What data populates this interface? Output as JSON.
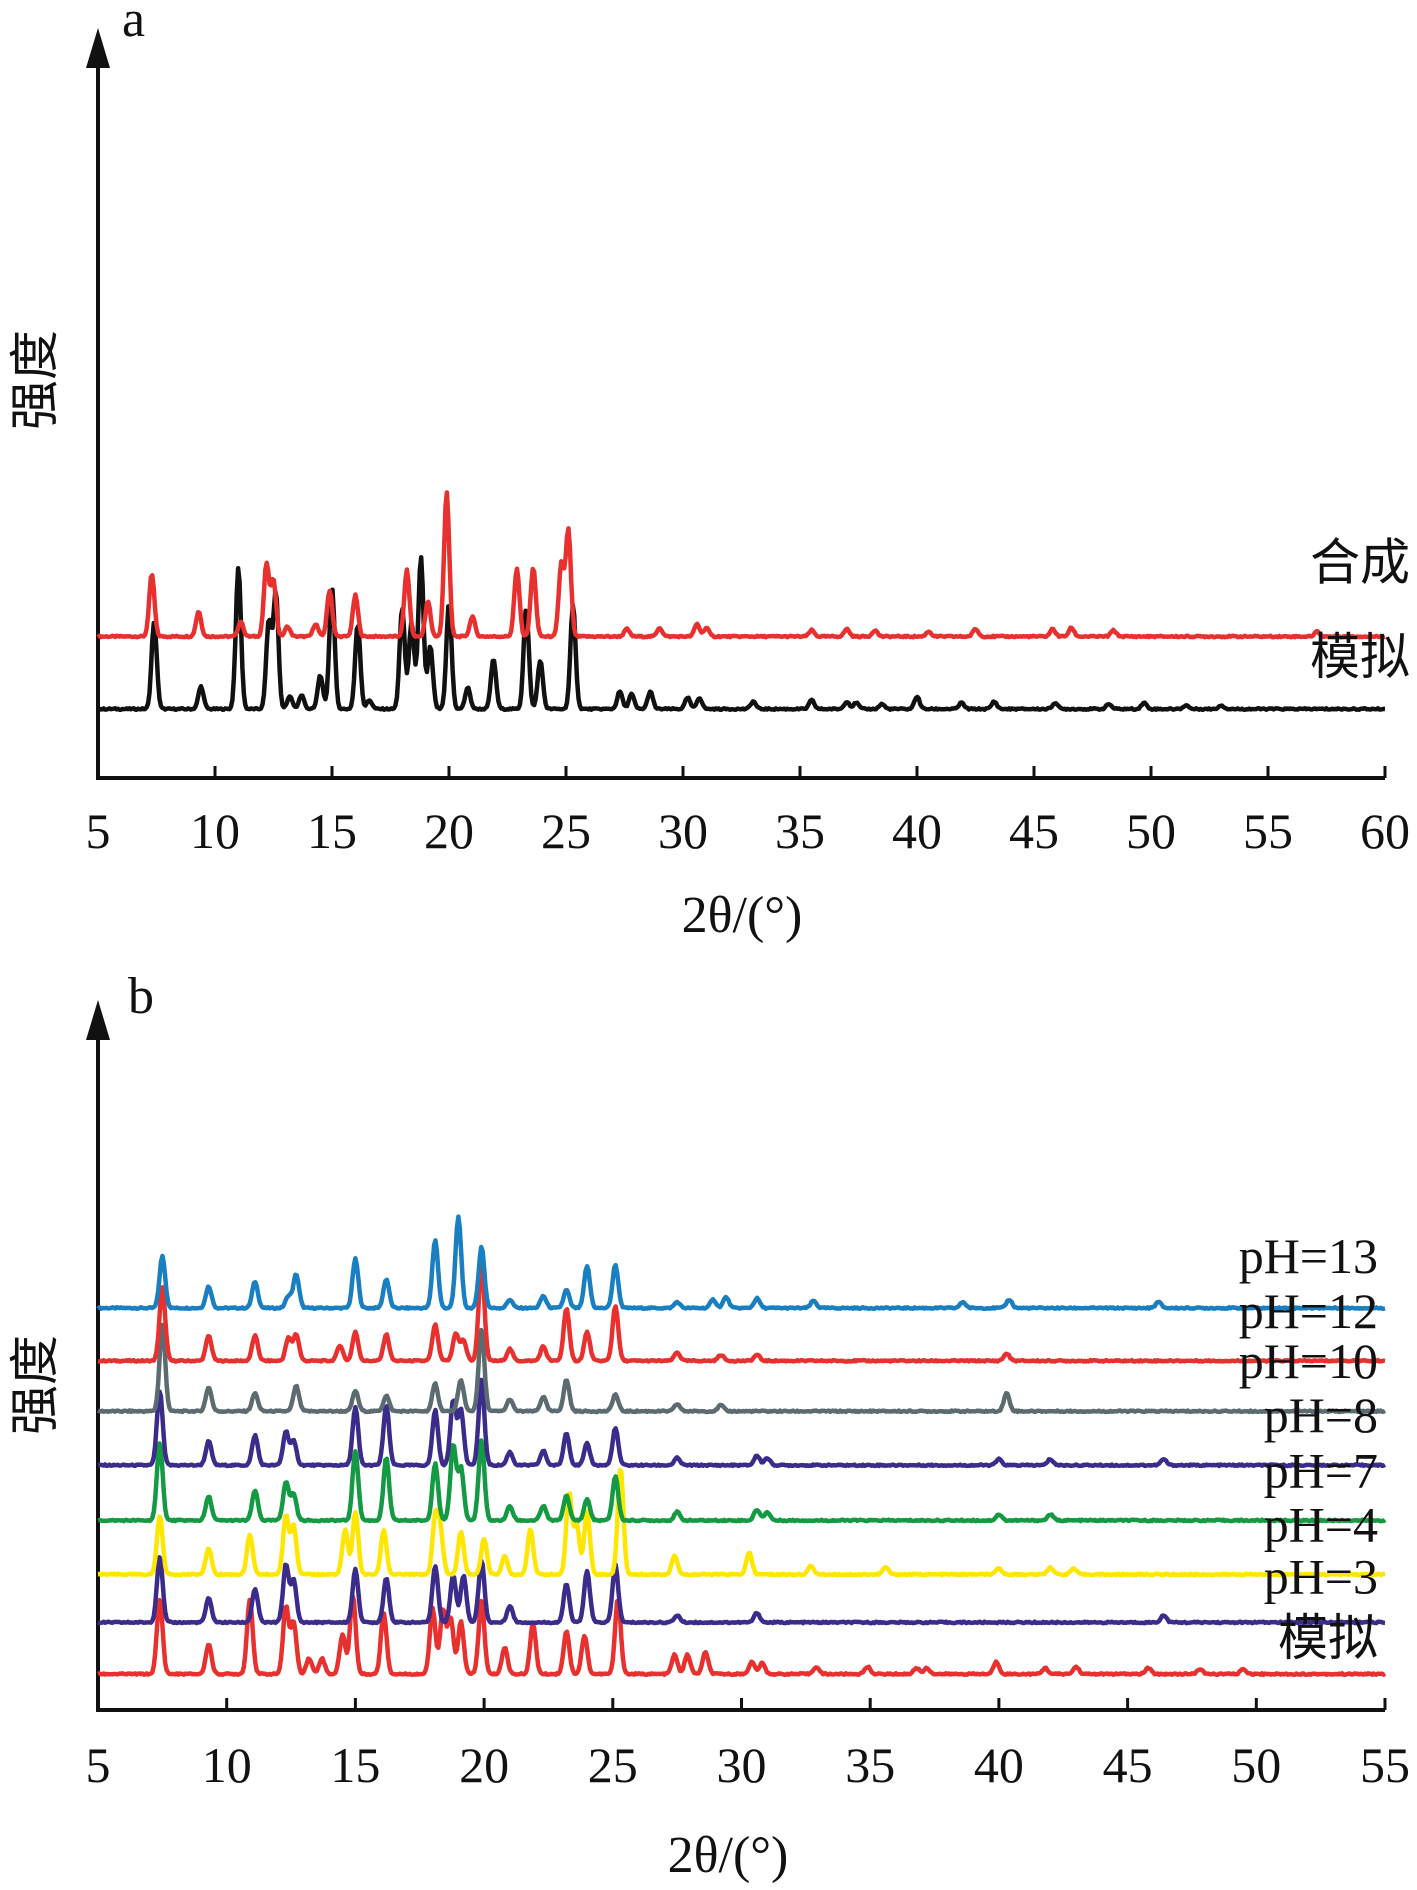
{
  "chart_data": [
    {
      "type": "line",
      "panel_label": "a",
      "ylabel": "强度",
      "xlabel": "2θ/(°)",
      "xlim": [
        5,
        60
      ],
      "xticks": [
        5,
        10,
        15,
        20,
        25,
        30,
        35,
        40,
        45,
        50,
        55,
        60
      ],
      "y_ticks_shown": false,
      "legend_placement": "right-of-each-curve",
      "series": [
        {
          "name": "合成",
          "color": "#e8312f",
          "baseline": 0.58,
          "peaks": [
            [
              7.3,
              0.5
            ],
            [
              9.3,
              0.2
            ],
            [
              11.1,
              0.12
            ],
            [
              12.2,
              0.58
            ],
            [
              12.5,
              0.45
            ],
            [
              13.1,
              0.08
            ],
            [
              14.3,
              0.1
            ],
            [
              14.9,
              0.37
            ],
            [
              16.0,
              0.33
            ],
            [
              18.2,
              0.53
            ],
            [
              19.1,
              0.28
            ],
            [
              19.9,
              1.16
            ],
            [
              21.0,
              0.16
            ],
            [
              22.9,
              0.54
            ],
            [
              23.6,
              0.55
            ],
            [
              24.8,
              0.58
            ],
            [
              25.1,
              0.85
            ],
            [
              27.6,
              0.06
            ],
            [
              29.0,
              0.07
            ],
            [
              30.6,
              0.1
            ],
            [
              31.0,
              0.07
            ],
            [
              35.5,
              0.05
            ],
            [
              37.0,
              0.06
            ],
            [
              38.2,
              0.05
            ],
            [
              40.5,
              0.04
            ],
            [
              42.5,
              0.06
            ],
            [
              45.8,
              0.06
            ],
            [
              46.6,
              0.07
            ],
            [
              48.4,
              0.05
            ],
            [
              57.1,
              0.04
            ]
          ]
        },
        {
          "name": "模拟",
          "color": "#111111",
          "baseline": 0.0,
          "peaks": [
            [
              7.4,
              0.7
            ],
            [
              9.4,
              0.18
            ],
            [
              11.0,
              1.13
            ],
            [
              12.3,
              0.7
            ],
            [
              12.6,
              0.93
            ],
            [
              13.2,
              0.1
            ],
            [
              13.7,
              0.11
            ],
            [
              14.5,
              0.27
            ],
            [
              15.0,
              0.98
            ],
            [
              16.1,
              0.68
            ],
            [
              16.6,
              0.07
            ],
            [
              18.0,
              0.81
            ],
            [
              18.4,
              0.7
            ],
            [
              18.8,
              1.22
            ],
            [
              19.2,
              0.5
            ],
            [
              20.0,
              0.85
            ],
            [
              20.8,
              0.17
            ],
            [
              21.9,
              0.4
            ],
            [
              23.3,
              0.81
            ],
            [
              23.9,
              0.39
            ],
            [
              25.3,
              0.83
            ],
            [
              27.3,
              0.14
            ],
            [
              27.8,
              0.12
            ],
            [
              28.6,
              0.14
            ],
            [
              30.2,
              0.09
            ],
            [
              30.7,
              0.09
            ],
            [
              33.0,
              0.06
            ],
            [
              35.5,
              0.07
            ],
            [
              37.0,
              0.06
            ],
            [
              37.4,
              0.05
            ],
            [
              38.5,
              0.04
            ],
            [
              40.0,
              0.1
            ],
            [
              41.9,
              0.05
            ],
            [
              43.3,
              0.06
            ],
            [
              45.9,
              0.05
            ],
            [
              48.2,
              0.04
            ],
            [
              49.7,
              0.05
            ],
            [
              51.5,
              0.03
            ],
            [
              53.0,
              0.03
            ]
          ]
        }
      ]
    },
    {
      "type": "line",
      "panel_label": "b",
      "ylabel": "强度",
      "xlabel": "2θ/(°)",
      "xlim": [
        5,
        55
      ],
      "xticks": [
        5,
        10,
        15,
        20,
        25,
        30,
        35,
        40,
        45,
        50,
        55
      ],
      "y_ticks_shown": false,
      "legend_placement": "right-of-each-curve",
      "series": [
        {
          "name": "pH=13",
          "color": "#1a7fc1",
          "baseline": 3.05,
          "peaks": [
            [
              7.5,
              0.43
            ],
            [
              9.3,
              0.18
            ],
            [
              11.1,
              0.22
            ],
            [
              12.4,
              0.1
            ],
            [
              12.7,
              0.28
            ],
            [
              15.0,
              0.41
            ],
            [
              16.2,
              0.24
            ],
            [
              18.1,
              0.57
            ],
            [
              19.0,
              0.76
            ],
            [
              19.9,
              0.51
            ],
            [
              21.0,
              0.07
            ],
            [
              22.3,
              0.1
            ],
            [
              23.2,
              0.15
            ],
            [
              24.0,
              0.35
            ],
            [
              25.1,
              0.36
            ],
            [
              27.5,
              0.05
            ],
            [
              28.9,
              0.07
            ],
            [
              29.4,
              0.09
            ],
            [
              30.6,
              0.08
            ],
            [
              32.8,
              0.06
            ],
            [
              38.6,
              0.05
            ],
            [
              40.4,
              0.07
            ],
            [
              46.2,
              0.05
            ]
          ]
        },
        {
          "name": "pH=12",
          "color": "#e8312f",
          "baseline": 2.61,
          "peaks": [
            [
              7.5,
              0.61
            ],
            [
              9.3,
              0.21
            ],
            [
              11.1,
              0.21
            ],
            [
              12.4,
              0.19
            ],
            [
              12.7,
              0.22
            ],
            [
              14.4,
              0.13
            ],
            [
              15.0,
              0.24
            ],
            [
              16.2,
              0.22
            ],
            [
              18.1,
              0.3
            ],
            [
              18.9,
              0.23
            ],
            [
              19.2,
              0.17
            ],
            [
              19.9,
              0.81
            ],
            [
              21.0,
              0.1
            ],
            [
              22.3,
              0.12
            ],
            [
              23.2,
              0.44
            ],
            [
              24.0,
              0.24
            ],
            [
              25.1,
              0.46
            ],
            [
              27.5,
              0.07
            ],
            [
              29.2,
              0.05
            ],
            [
              30.6,
              0.05
            ],
            [
              40.3,
              0.06
            ]
          ]
        },
        {
          "name": "pH=10",
          "color": "#5b6b70",
          "baseline": 2.19,
          "peaks": [
            [
              7.5,
              0.72
            ],
            [
              9.3,
              0.2
            ],
            [
              11.1,
              0.15
            ],
            [
              12.7,
              0.21
            ],
            [
              15.0,
              0.17
            ],
            [
              16.2,
              0.13
            ],
            [
              18.1,
              0.23
            ],
            [
              19.1,
              0.26
            ],
            [
              19.9,
              0.68
            ],
            [
              21.0,
              0.1
            ],
            [
              22.3,
              0.12
            ],
            [
              23.2,
              0.26
            ],
            [
              25.1,
              0.14
            ],
            [
              27.5,
              0.06
            ],
            [
              29.2,
              0.05
            ],
            [
              40.3,
              0.15
            ]
          ]
        },
        {
          "name": "pH=8",
          "color": "#3b2c8c",
          "baseline": 1.74,
          "peaks": [
            [
              7.4,
              0.62
            ],
            [
              9.3,
              0.2
            ],
            [
              11.1,
              0.25
            ],
            [
              12.3,
              0.28
            ],
            [
              12.6,
              0.2
            ],
            [
              15.0,
              0.48
            ],
            [
              16.2,
              0.5
            ],
            [
              18.1,
              0.46
            ],
            [
              18.8,
              0.54
            ],
            [
              19.1,
              0.46
            ],
            [
              19.9,
              0.71
            ],
            [
              21.0,
              0.11
            ],
            [
              22.3,
              0.12
            ],
            [
              23.2,
              0.27
            ],
            [
              24.0,
              0.18
            ],
            [
              25.1,
              0.31
            ],
            [
              27.5,
              0.06
            ],
            [
              30.6,
              0.08
            ],
            [
              31.0,
              0.06
            ],
            [
              40.0,
              0.05
            ],
            [
              42.0,
              0.05
            ],
            [
              46.4,
              0.05
            ]
          ]
        },
        {
          "name": "pH=7",
          "color": "#139a43",
          "baseline": 1.28,
          "peaks": [
            [
              7.4,
              0.65
            ],
            [
              9.3,
              0.2
            ],
            [
              11.1,
              0.25
            ],
            [
              12.3,
              0.32
            ],
            [
              12.6,
              0.22
            ],
            [
              15.0,
              0.58
            ],
            [
              16.2,
              0.52
            ],
            [
              18.1,
              0.48
            ],
            [
              18.8,
              0.63
            ],
            [
              19.1,
              0.44
            ],
            [
              19.9,
              0.67
            ],
            [
              21.0,
              0.12
            ],
            [
              22.3,
              0.12
            ],
            [
              23.2,
              0.21
            ],
            [
              24.0,
              0.18
            ],
            [
              25.1,
              0.37
            ],
            [
              27.5,
              0.07
            ],
            [
              30.6,
              0.09
            ],
            [
              31.0,
              0.07
            ],
            [
              40.0,
              0.05
            ],
            [
              42.0,
              0.05
            ]
          ]
        },
        {
          "name": "pH=4",
          "color": "#ffe600",
          "baseline": 0.83,
          "peaks": [
            [
              7.4,
              0.49
            ],
            [
              9.3,
              0.22
            ],
            [
              10.9,
              0.33
            ],
            [
              12.3,
              0.49
            ],
            [
              12.6,
              0.41
            ],
            [
              14.6,
              0.37
            ],
            [
              15.0,
              0.52
            ],
            [
              16.1,
              0.37
            ],
            [
              18.1,
              0.45
            ],
            [
              18.3,
              0.35
            ],
            [
              19.1,
              0.36
            ],
            [
              20.0,
              0.3
            ],
            [
              20.8,
              0.15
            ],
            [
              21.8,
              0.38
            ],
            [
              23.3,
              0.68
            ],
            [
              23.6,
              0.41
            ],
            [
              24.0,
              0.53
            ],
            [
              25.3,
              0.89
            ],
            [
              27.4,
              0.16
            ],
            [
              30.3,
              0.18
            ],
            [
              32.7,
              0.07
            ],
            [
              35.6,
              0.06
            ],
            [
              40.0,
              0.05
            ],
            [
              42.0,
              0.06
            ],
            [
              42.9,
              0.05
            ]
          ]
        },
        {
          "name": "pH=3",
          "color": "#3b2c8c",
          "baseline": 0.43,
          "peaks": [
            [
              7.4,
              0.55
            ],
            [
              9.3,
              0.2
            ],
            [
              11.1,
              0.28
            ],
            [
              12.3,
              0.48
            ],
            [
              12.6,
              0.35
            ],
            [
              15.0,
              0.44
            ],
            [
              16.2,
              0.37
            ],
            [
              18.1,
              0.47
            ],
            [
              18.8,
              0.39
            ],
            [
              19.2,
              0.39
            ],
            [
              19.9,
              0.52
            ],
            [
              21.0,
              0.14
            ],
            [
              23.2,
              0.32
            ],
            [
              24.0,
              0.43
            ],
            [
              25.1,
              0.48
            ],
            [
              27.5,
              0.06
            ],
            [
              30.6,
              0.08
            ],
            [
              46.4,
              0.06
            ]
          ]
        },
        {
          "name": "模拟",
          "color": "#e8312f",
          "baseline": 0.0,
          "peaks": [
            [
              7.4,
              0.62
            ],
            [
              9.3,
              0.25
            ],
            [
              10.9,
              0.62
            ],
            [
              12.3,
              0.56
            ],
            [
              12.6,
              0.43
            ],
            [
              13.2,
              0.13
            ],
            [
              13.7,
              0.13
            ],
            [
              14.5,
              0.33
            ],
            [
              14.9,
              0.66
            ],
            [
              16.1,
              0.51
            ],
            [
              18.0,
              0.55
            ],
            [
              18.4,
              0.53
            ],
            [
              18.7,
              0.47
            ],
            [
              19.1,
              0.44
            ],
            [
              19.9,
              0.61
            ],
            [
              20.8,
              0.22
            ],
            [
              21.9,
              0.42
            ],
            [
              23.2,
              0.36
            ],
            [
              23.9,
              0.32
            ],
            [
              25.2,
              0.63
            ],
            [
              27.4,
              0.16
            ],
            [
              27.9,
              0.16
            ],
            [
              28.6,
              0.18
            ],
            [
              30.4,
              0.1
            ],
            [
              30.8,
              0.09
            ],
            [
              32.9,
              0.06
            ],
            [
              34.9,
              0.06
            ],
            [
              36.8,
              0.05
            ],
            [
              37.2,
              0.05
            ],
            [
              39.9,
              0.1
            ],
            [
              41.8,
              0.05
            ],
            [
              43.0,
              0.06
            ],
            [
              45.8,
              0.05
            ],
            [
              47.8,
              0.04
            ],
            [
              49.5,
              0.04
            ]
          ]
        }
      ]
    }
  ]
}
